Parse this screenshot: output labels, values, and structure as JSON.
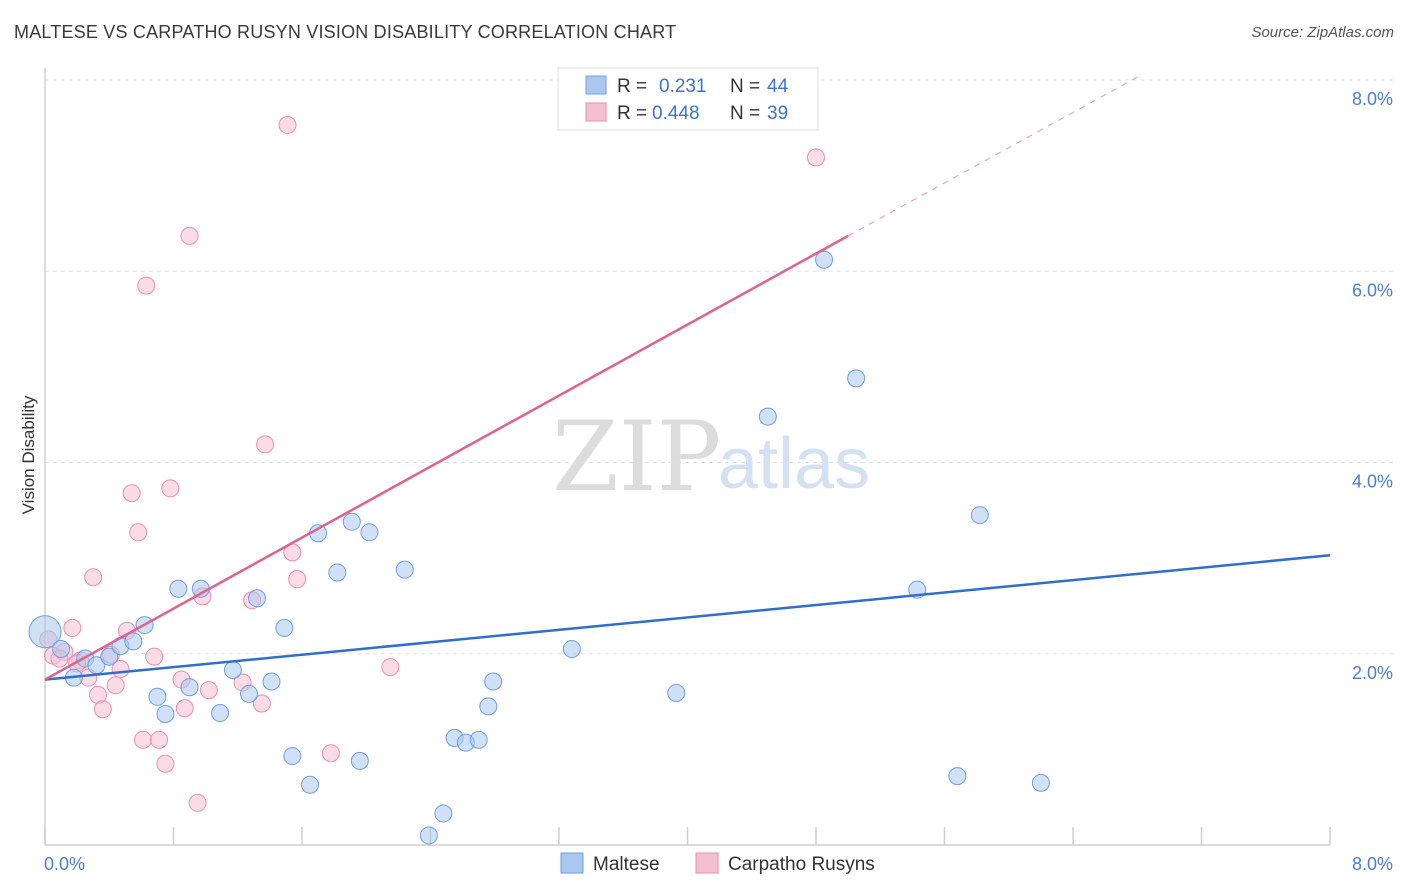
{
  "header": {
    "title": "MALTESE VS CARPATHO RUSYN VISION DISABILITY CORRELATION CHART",
    "source": "Source: ZipAtlas.com"
  },
  "watermark": {
    "zip": "ZIP",
    "atlas": "atlas"
  },
  "legend": {
    "rows": [
      {
        "r_label": "R =",
        "r_value": "0.231",
        "n_label": "N =",
        "n_value": "44"
      },
      {
        "r_label": "R =",
        "r_value": "0.448",
        "n_label": "N =",
        "n_value": "39"
      }
    ]
  },
  "bottom_legend": {
    "items": [
      "Maltese",
      "Carpatho Rusyns"
    ]
  },
  "colors": {
    "maltese_fill": "#aac8ef",
    "maltese_stroke": "#6e9fe0",
    "maltese_line": "#2f6fcc",
    "rusyn_fill": "#f5bfd2",
    "rusyn_stroke": "#ec8db0",
    "rusyn_line": "#e0628f",
    "tick_text": "#4a7fd0",
    "grid": "#e0e0e0"
  },
  "chart_data": {
    "type": "scatter",
    "title": "MALTESE VS CARPATHO RUSYN VISION DISABILITY CORRELATION CHART",
    "xlabel": "",
    "ylabel": "Vision Disability",
    "xlim": [
      0,
      8
    ],
    "ylim": [
      0,
      8
    ],
    "x_tick_labels": [
      "0.0%",
      "8.0%"
    ],
    "y_ticks": [
      2,
      4,
      6,
      8
    ],
    "y_tick_labels": [
      "2.0%",
      "4.0%",
      "6.0%",
      "8.0%"
    ],
    "grid": true,
    "legend_position": "top-center",
    "series": [
      {
        "name": "Maltese",
        "R": 0.231,
        "N": 44,
        "trend": {
          "x": [
            0,
            8
          ],
          "y": [
            1.73,
            3.03
          ]
        },
        "points": [
          {
            "x": 0.0,
            "y": 2.23,
            "big": true
          },
          {
            "x": 0.1,
            "y": 2.05
          },
          {
            "x": 0.18,
            "y": 1.75
          },
          {
            "x": 0.25,
            "y": 1.95
          },
          {
            "x": 0.32,
            "y": 1.88
          },
          {
            "x": 0.4,
            "y": 1.97
          },
          {
            "x": 0.47,
            "y": 2.08
          },
          {
            "x": 0.55,
            "y": 2.13
          },
          {
            "x": 0.62,
            "y": 2.3
          },
          {
            "x": 0.7,
            "y": 1.55
          },
          {
            "x": 0.75,
            "y": 1.37
          },
          {
            "x": 0.83,
            "y": 2.68
          },
          {
            "x": 0.9,
            "y": 1.65
          },
          {
            "x": 0.97,
            "y": 2.68
          },
          {
            "x": 1.09,
            "y": 1.38
          },
          {
            "x": 1.17,
            "y": 1.83
          },
          {
            "x": 1.27,
            "y": 1.58
          },
          {
            "x": 1.32,
            "y": 2.58
          },
          {
            "x": 1.41,
            "y": 1.71
          },
          {
            "x": 1.49,
            "y": 2.27
          },
          {
            "x": 1.54,
            "y": 0.93
          },
          {
            "x": 1.65,
            "y": 0.63
          },
          {
            "x": 1.7,
            "y": 3.26
          },
          {
            "x": 1.82,
            "y": 2.85
          },
          {
            "x": 1.91,
            "y": 3.38
          },
          {
            "x": 1.96,
            "y": 0.88
          },
          {
            "x": 2.02,
            "y": 3.27
          },
          {
            "x": 2.24,
            "y": 2.88
          },
          {
            "x": 2.39,
            "y": 0.1
          },
          {
            "x": 2.48,
            "y": 0.33
          },
          {
            "x": 2.55,
            "y": 1.12
          },
          {
            "x": 2.62,
            "y": 1.07
          },
          {
            "x": 2.7,
            "y": 1.1
          },
          {
            "x": 2.76,
            "y": 1.45
          },
          {
            "x": 2.79,
            "y": 1.71
          },
          {
            "x": 3.28,
            "y": 2.05
          },
          {
            "x": 3.93,
            "y": 1.59
          },
          {
            "x": 4.5,
            "y": 4.48
          },
          {
            "x": 4.85,
            "y": 6.12
          },
          {
            "x": 5.05,
            "y": 4.88
          },
          {
            "x": 5.43,
            "y": 2.67
          },
          {
            "x": 5.68,
            "y": 0.72
          },
          {
            "x": 5.82,
            "y": 3.45
          },
          {
            "x": 6.2,
            "y": 0.65
          }
        ]
      },
      {
        "name": "Carpatho Rusyns",
        "R": 0.448,
        "N": 39,
        "trend": {
          "x": [
            0,
            5.0
          ],
          "y": [
            1.73,
            6.37
          ]
        },
        "trend_dashed": {
          "x": [
            5.0,
            6.8
          ],
          "y": [
            6.37,
            8.03
          ]
        },
        "points": [
          {
            "x": 0.05,
            "y": 1.98
          },
          {
            "x": 0.12,
            "y": 2.02
          },
          {
            "x": 0.17,
            "y": 2.27
          },
          {
            "x": 0.22,
            "y": 1.93
          },
          {
            "x": 0.27,
            "y": 1.75
          },
          {
            "x": 0.3,
            "y": 2.8
          },
          {
            "x": 0.33,
            "y": 1.57
          },
          {
            "x": 0.36,
            "y": 1.42
          },
          {
            "x": 0.41,
            "y": 1.99
          },
          {
            "x": 0.44,
            "y": 1.67
          },
          {
            "x": 0.47,
            "y": 1.84
          },
          {
            "x": 0.51,
            "y": 2.24
          },
          {
            "x": 0.54,
            "y": 3.68
          },
          {
            "x": 0.58,
            "y": 3.27
          },
          {
            "x": 0.61,
            "y": 1.1
          },
          {
            "x": 0.63,
            "y": 5.85
          },
          {
            "x": 0.68,
            "y": 1.97
          },
          {
            "x": 0.71,
            "y": 1.1
          },
          {
            "x": 0.75,
            "y": 0.85
          },
          {
            "x": 0.78,
            "y": 3.73
          },
          {
            "x": 0.85,
            "y": 1.73
          },
          {
            "x": 0.87,
            "y": 1.43
          },
          {
            "x": 0.9,
            "y": 6.37
          },
          {
            "x": 0.95,
            "y": 0.44
          },
          {
            "x": 0.98,
            "y": 2.6
          },
          {
            "x": 1.02,
            "y": 1.62
          },
          {
            "x": 1.23,
            "y": 1.7
          },
          {
            "x": 1.29,
            "y": 2.56
          },
          {
            "x": 1.35,
            "y": 1.48
          },
          {
            "x": 1.37,
            "y": 4.19
          },
          {
            "x": 1.51,
            "y": 7.53
          },
          {
            "x": 1.54,
            "y": 3.06
          },
          {
            "x": 1.57,
            "y": 2.78
          },
          {
            "x": 1.78,
            "y": 0.96
          },
          {
            "x": 2.15,
            "y": 1.86
          },
          {
            "x": 4.8,
            "y": 7.19
          },
          {
            "x": 0.02,
            "y": 2.15
          },
          {
            "x": 0.09,
            "y": 1.95
          },
          {
            "x": 0.2,
            "y": 1.9
          }
        ]
      }
    ]
  }
}
